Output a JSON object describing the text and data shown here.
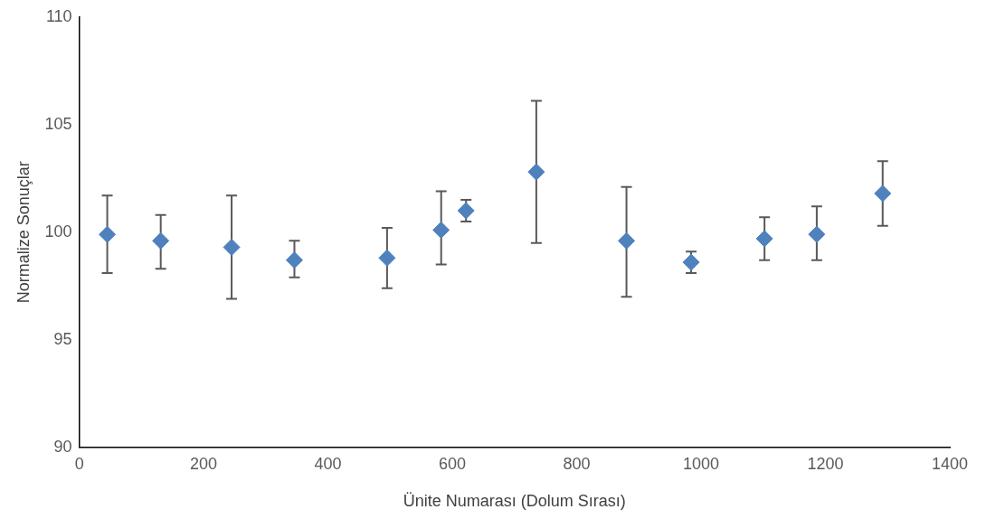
{
  "chart_data": {
    "type": "scatter",
    "xlabel": "Ünite Numarası (Dolum Sırası)",
    "ylabel": "Normalize Sonuçlar",
    "x": [
      45,
      131,
      245,
      346,
      495,
      582,
      622,
      735,
      880,
      984,
      1102,
      1186,
      1292
    ],
    "series": [
      {
        "color": "#4f81bd",
        "values": [
          99.9,
          99.6,
          99.3,
          98.7,
          98.8,
          100.1,
          101.0,
          102.8,
          99.6,
          98.6,
          99.7,
          99.9,
          101.8
        ],
        "errors": [
          [
            98.1,
            101.7
          ],
          [
            98.3,
            100.8
          ],
          [
            96.9,
            101.7
          ],
          [
            97.9,
            99.6
          ],
          [
            97.4,
            100.2
          ],
          [
            98.5,
            101.9
          ],
          [
            100.5,
            101.5
          ],
          [
            99.5,
            106.1
          ],
          [
            97.0,
            102.1
          ],
          [
            98.1,
            99.1
          ],
          [
            98.7,
            100.7
          ],
          [
            98.7,
            101.2
          ],
          [
            100.3,
            103.3
          ]
        ]
      }
    ],
    "xlim": [
      0,
      1400
    ],
    "xticks": [
      0,
      200,
      400,
      600,
      800,
      1000,
      1200,
      1400
    ],
    "ylim": [
      90,
      110
    ],
    "yticks": [
      90,
      95,
      100,
      105,
      110
    ],
    "grid": false,
    "legend": false,
    "marker": "diamond"
  }
}
